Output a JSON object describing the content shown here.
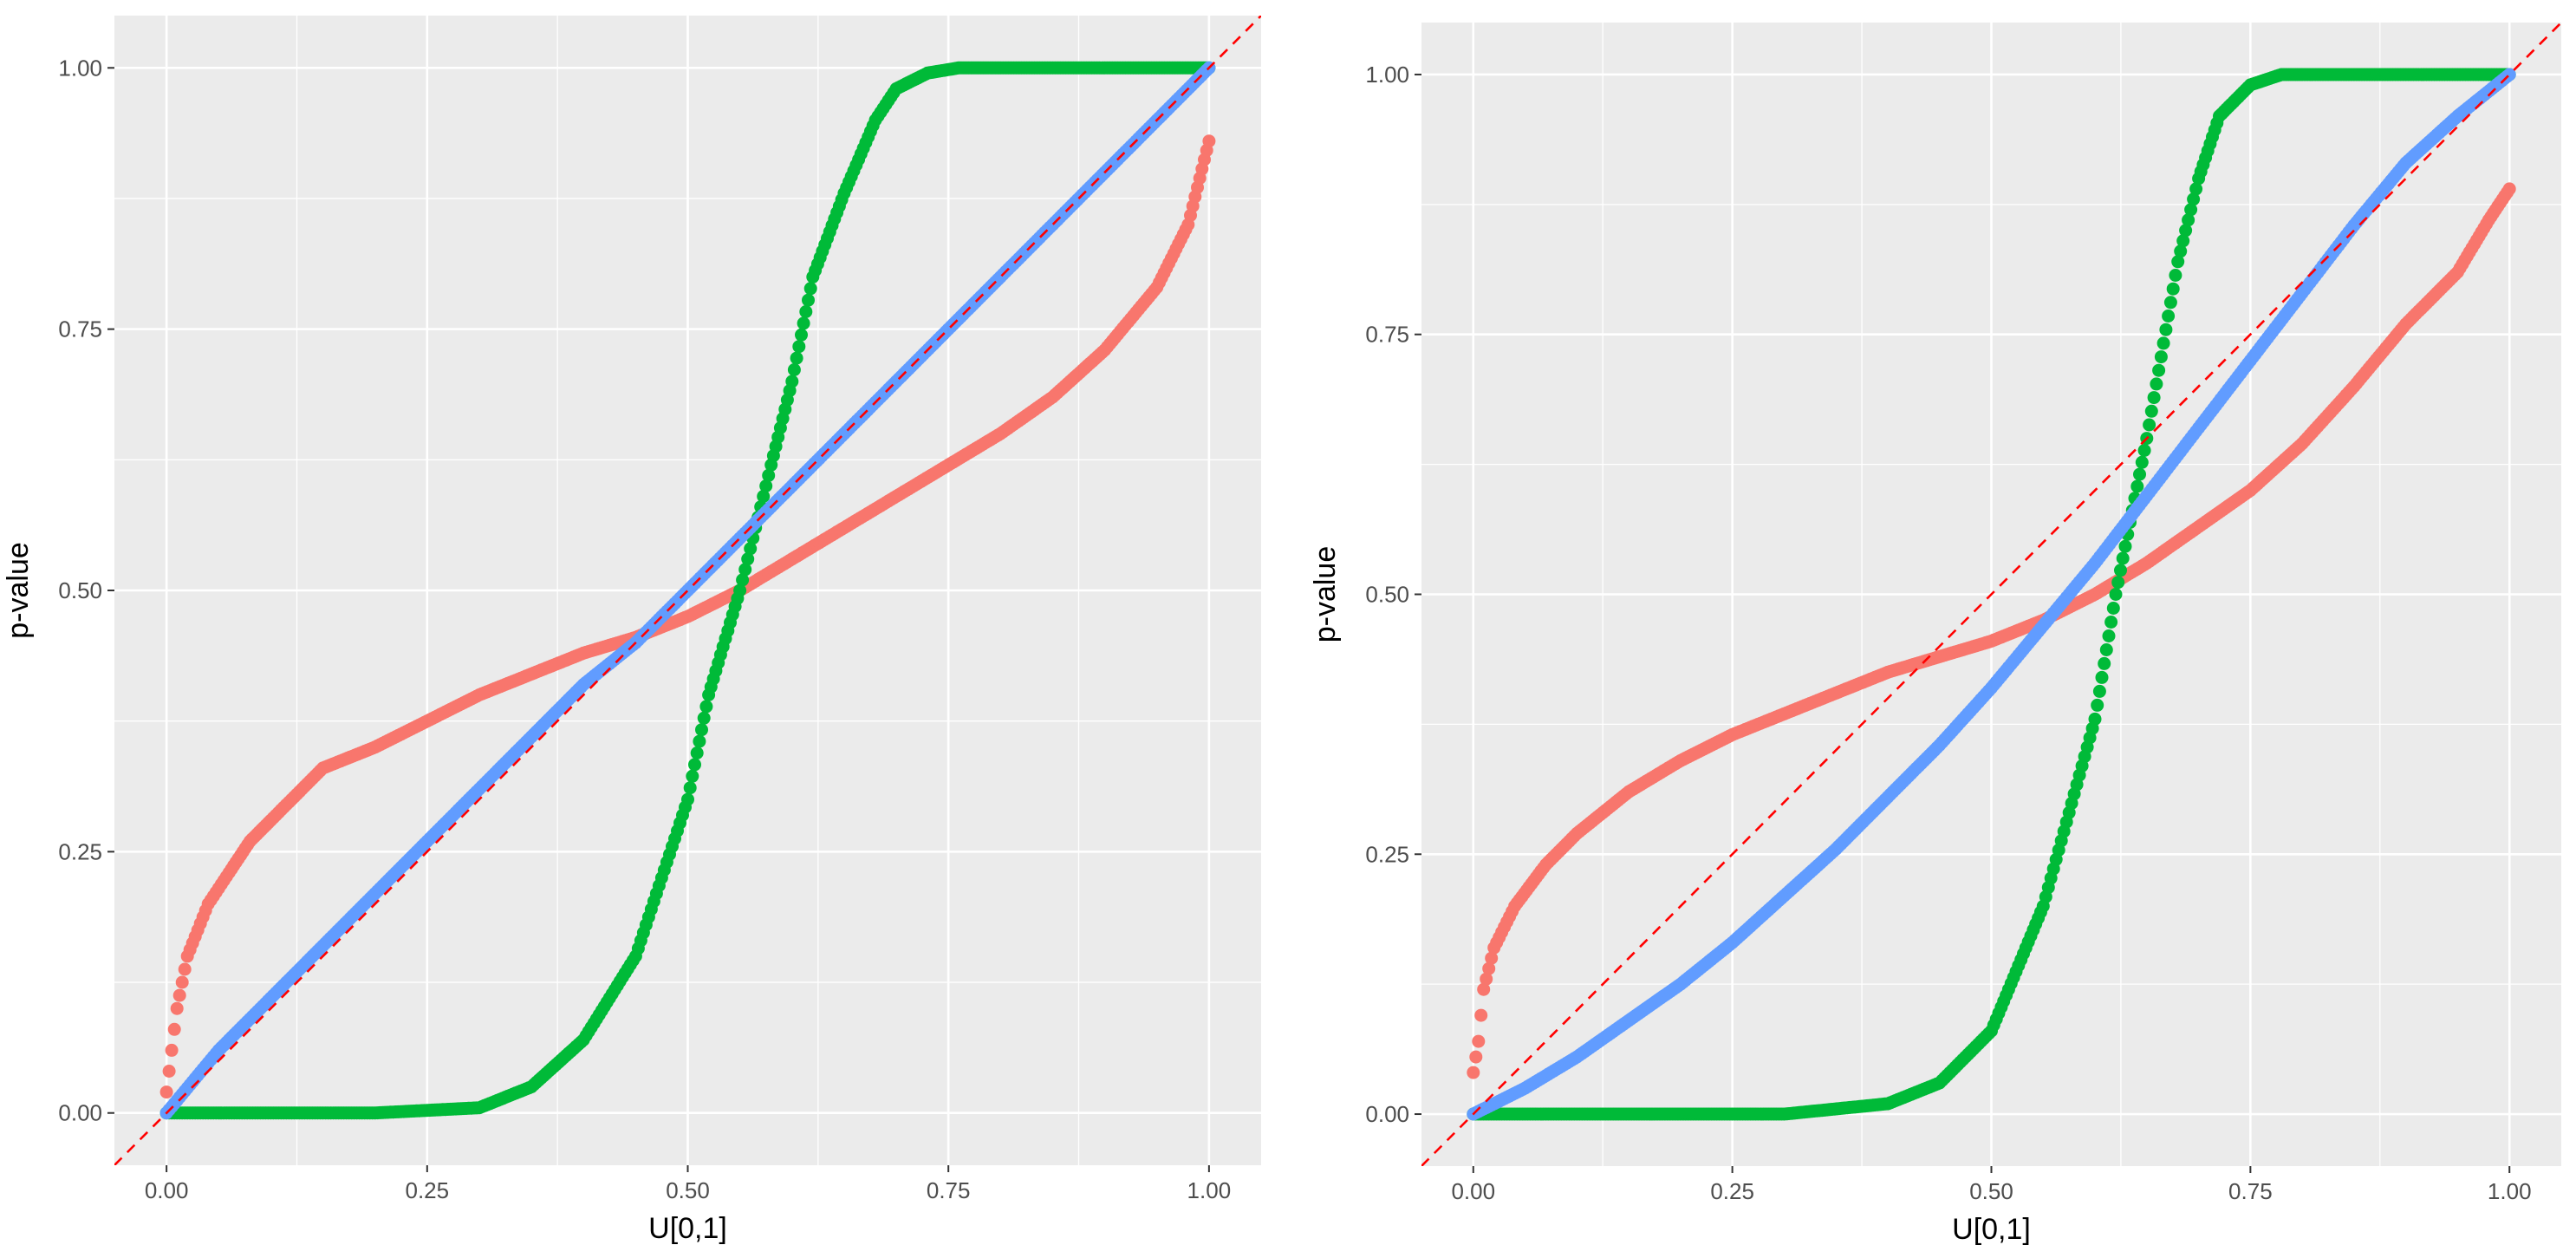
{
  "colors": {
    "panel_background": "#EBEBEB",
    "gridline": "#FFFFFF",
    "series_red": "#F8766D",
    "series_green": "#00BA38",
    "series_blue": "#619CFF",
    "reference_line": "#FF0000"
  },
  "chart_data": [
    {
      "type": "scatter",
      "title": "",
      "xlabel": "U[0,1]",
      "ylabel": "p-value",
      "xlim": [
        -0.05,
        1.05
      ],
      "ylim": [
        -0.05,
        1.05
      ],
      "x_ticks": [
        0,
        0.25,
        0.5,
        0.75,
        1
      ],
      "x_tick_labels": [
        "0.00",
        "0.25",
        "0.50",
        "0.75",
        "1.00"
      ],
      "y_ticks": [
        0,
        0.25,
        0.5,
        0.75,
        1
      ],
      "y_tick_labels": [
        "0.00",
        "0.25",
        "0.50",
        "0.75",
        "1.00"
      ],
      "grid": true,
      "legend": "none",
      "reference_line": {
        "style": "dashed",
        "slope": 1,
        "intercept": 0
      },
      "series": [
        {
          "color": "red",
          "x": [
            0,
            0.01,
            0.02,
            0.04,
            0.06,
            0.08,
            0.1,
            0.12,
            0.15,
            0.2,
            0.25,
            0.3,
            0.35,
            0.4,
            0.45,
            0.5,
            0.55,
            0.6,
            0.65,
            0.7,
            0.75,
            0.8,
            0.85,
            0.9,
            0.95,
            0.98,
            1.0
          ],
          "y": [
            0.02,
            0.1,
            0.15,
            0.2,
            0.23,
            0.26,
            0.28,
            0.3,
            0.33,
            0.35,
            0.375,
            0.4,
            0.42,
            0.44,
            0.455,
            0.475,
            0.5,
            0.53,
            0.56,
            0.59,
            0.62,
            0.65,
            0.685,
            0.73,
            0.79,
            0.85,
            0.93
          ]
        },
        {
          "color": "green",
          "x": [
            0,
            0.1,
            0.2,
            0.3,
            0.35,
            0.4,
            0.45,
            0.5,
            0.52,
            0.55,
            0.58,
            0.6,
            0.62,
            0.65,
            0.68,
            0.7,
            0.73,
            0.76,
            0.8,
            0.9,
            1.0
          ],
          "y": [
            0,
            0,
            0,
            0.005,
            0.025,
            0.07,
            0.15,
            0.3,
            0.4,
            0.5,
            0.62,
            0.7,
            0.8,
            0.88,
            0.95,
            0.98,
            0.995,
            1,
            1,
            1,
            1
          ]
        },
        {
          "color": "blue",
          "x": [
            0,
            0.05,
            0.1,
            0.15,
            0.2,
            0.25,
            0.3,
            0.35,
            0.4,
            0.45,
            0.5,
            0.55,
            0.6,
            0.65,
            0.7,
            0.75,
            0.8,
            0.85,
            0.9,
            0.95,
            1.0
          ],
          "y": [
            0,
            0.06,
            0.11,
            0.16,
            0.21,
            0.26,
            0.31,
            0.36,
            0.41,
            0.45,
            0.5,
            0.55,
            0.6,
            0.65,
            0.7,
            0.75,
            0.8,
            0.85,
            0.9,
            0.95,
            1.0
          ]
        }
      ]
    },
    {
      "type": "scatter",
      "title": "",
      "xlabel": "U[0,1]",
      "ylabel": "p-value",
      "xlim": [
        -0.05,
        1.05
      ],
      "ylim": [
        -0.05,
        1.05
      ],
      "x_ticks": [
        0,
        0.25,
        0.5,
        0.75,
        1
      ],
      "x_tick_labels": [
        "0.00",
        "0.25",
        "0.50",
        "0.75",
        "1.00"
      ],
      "y_ticks": [
        0,
        0.25,
        0.5,
        0.75,
        1
      ],
      "y_tick_labels": [
        "0.00",
        "0.25",
        "0.50",
        "0.75",
        "1.00"
      ],
      "grid": true,
      "legend": "none",
      "reference_line": {
        "style": "dashed",
        "slope": 1,
        "intercept": 0
      },
      "series": [
        {
          "color": "red",
          "x": [
            0,
            0.005,
            0.01,
            0.02,
            0.04,
            0.07,
            0.1,
            0.15,
            0.2,
            0.25,
            0.3,
            0.35,
            0.4,
            0.45,
            0.5,
            0.55,
            0.6,
            0.65,
            0.7,
            0.75,
            0.8,
            0.85,
            0.9,
            0.95,
            0.98,
            1.0
          ],
          "y": [
            0.04,
            0.07,
            0.12,
            0.16,
            0.2,
            0.24,
            0.27,
            0.31,
            0.34,
            0.365,
            0.385,
            0.405,
            0.425,
            0.44,
            0.455,
            0.475,
            0.5,
            0.53,
            0.565,
            0.6,
            0.645,
            0.7,
            0.76,
            0.81,
            0.86,
            0.89
          ]
        },
        {
          "color": "green",
          "x": [
            0,
            0.1,
            0.2,
            0.3,
            0.4,
            0.45,
            0.5,
            0.55,
            0.6,
            0.62,
            0.65,
            0.68,
            0.7,
            0.72,
            0.75,
            0.78,
            0.8,
            0.9,
            1.0
          ],
          "y": [
            0,
            0,
            0,
            0,
            0.01,
            0.03,
            0.08,
            0.2,
            0.38,
            0.5,
            0.65,
            0.82,
            0.9,
            0.96,
            0.99,
            1,
            1,
            1,
            1
          ]
        },
        {
          "color": "blue",
          "x": [
            0,
            0.05,
            0.1,
            0.15,
            0.2,
            0.25,
            0.3,
            0.35,
            0.4,
            0.45,
            0.5,
            0.55,
            0.6,
            0.65,
            0.7,
            0.75,
            0.8,
            0.85,
            0.9,
            0.95,
            1.0
          ],
          "y": [
            0,
            0.025,
            0.055,
            0.09,
            0.125,
            0.165,
            0.21,
            0.255,
            0.305,
            0.355,
            0.41,
            0.47,
            0.53,
            0.595,
            0.66,
            0.725,
            0.79,
            0.855,
            0.915,
            0.96,
            1.0
          ]
        }
      ]
    }
  ]
}
